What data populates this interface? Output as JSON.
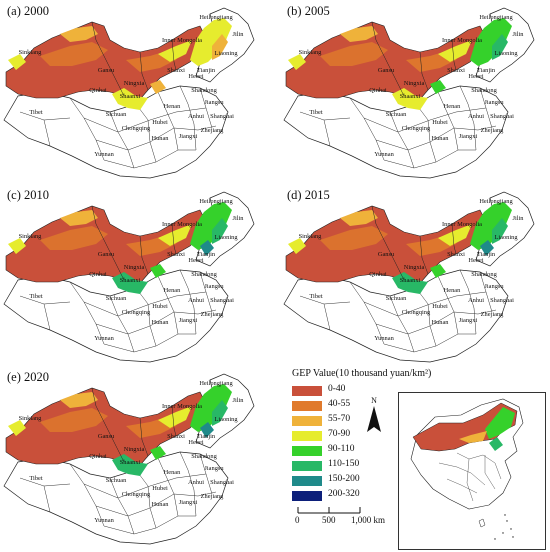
{
  "panels": [
    {
      "label": "(a) 2000",
      "shade": 0.1
    },
    {
      "label": "(b) 2005",
      "shade": 0.55
    },
    {
      "label": "(c) 2010",
      "shade": 0.75
    },
    {
      "label": "(d) 2015",
      "shade": 0.8
    },
    {
      "label": "(e) 2020",
      "shade": 0.95
    }
  ],
  "provinces": {
    "heilongjiang": "Heilongjiang",
    "jilin": "Jilin",
    "inner_mongolia": "Inner Mongolia",
    "liaoning": "Liaoning",
    "sinkiang": "Sinkiang",
    "gansu": "Gansu",
    "qinhai": "Qinhai",
    "ningxia": "Ningxia",
    "shanxi": "Shanxi",
    "hebei": "Hebei",
    "tianjin": "Tianjin",
    "shandong": "Shandong",
    "henan": "Henan",
    "jiangsu": "Jiangsu",
    "tibet": "Tibet",
    "sichuan": "Sichuan",
    "hubei": "Hubei",
    "anhui": "Anhui",
    "shanghai": "Shanghai",
    "chongqing": "Chongqing",
    "hunan": "Hunan",
    "jiangxi": "Jiangxi",
    "zhejiang": "Zhejiang",
    "yunnan": "Yunnan",
    "shaanxi": "Shaanxi"
  },
  "legend": {
    "title": "GEP Value(10 thousand yuan/km²)",
    "items": [
      {
        "label": "0-40",
        "color": "#c9503a"
      },
      {
        "label": "40-55",
        "color": "#e07a2c"
      },
      {
        "label": "55-70",
        "color": "#efb23a"
      },
      {
        "label": "70-90",
        "color": "#e6ec2e"
      },
      {
        "label": "90-110",
        "color": "#35d12b"
      },
      {
        "label": "110-150",
        "color": "#28b866"
      },
      {
        "label": "150-200",
        "color": "#1f8a8a"
      },
      {
        "label": "200-320",
        "color": "#0c1f7a"
      }
    ]
  },
  "north_label": "N",
  "scale": {
    "labels": [
      "0",
      "500",
      "1,000 km"
    ]
  }
}
